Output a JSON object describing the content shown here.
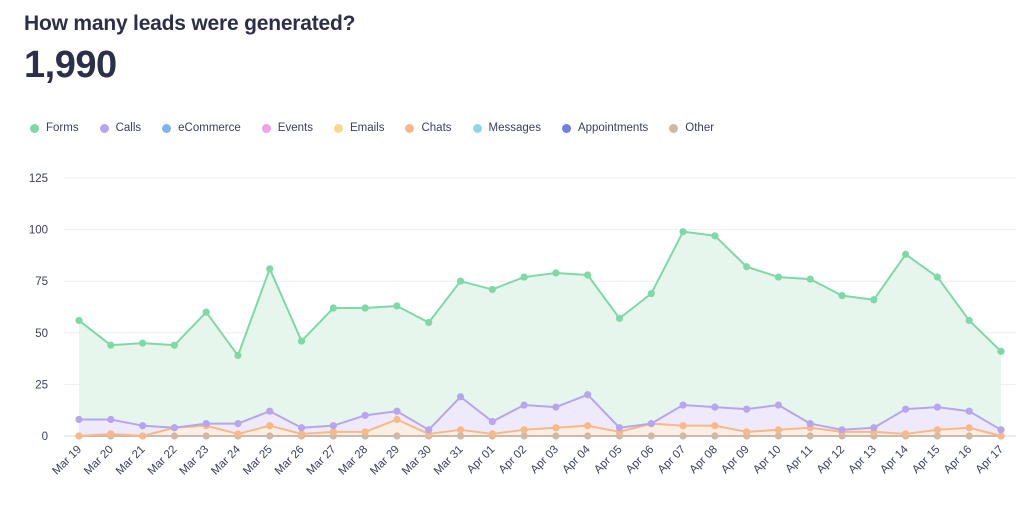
{
  "header": {
    "title": "How many leads were generated?",
    "total": "1,990"
  },
  "legend": [
    {
      "label": "Forms",
      "color": "#7fd8a8"
    },
    {
      "label": "Calls",
      "color": "#b7a6ec"
    },
    {
      "label": "eCommerce",
      "color": "#7fb3ee"
    },
    {
      "label": "Events",
      "color": "#f0a2e6"
    },
    {
      "label": "Emails",
      "color": "#f8d98c"
    },
    {
      "label": "Chats",
      "color": "#f7b88a"
    },
    {
      "label": "Messages",
      "color": "#92d6e6"
    },
    {
      "label": "Appointments",
      "color": "#6f7ee8"
    },
    {
      "label": "Other",
      "color": "#cdb9a6"
    }
  ],
  "chart_data": {
    "type": "area",
    "title": "How many leads were generated?",
    "xlabel": "",
    "ylabel": "",
    "ylim": [
      0,
      125
    ],
    "yticks": [
      0,
      25,
      50,
      75,
      100,
      125
    ],
    "categories": [
      "Mar 19",
      "Mar 20",
      "Mar 21",
      "Mar 22",
      "Mar 23",
      "Mar 24",
      "Mar 25",
      "Mar 26",
      "Mar 27",
      "Mar 28",
      "Mar 29",
      "Mar 30",
      "Mar 31",
      "Apr 01",
      "Apr 02",
      "Apr 03",
      "Apr 04",
      "Apr 05",
      "Apr 06",
      "Apr 07",
      "Apr 08",
      "Apr 09",
      "Apr 10",
      "Apr 11",
      "Apr 12",
      "Apr 13",
      "Apr 14",
      "Apr 15",
      "Apr 16",
      "Apr 17"
    ],
    "series": [
      {
        "name": "Forms",
        "color": "#7fd8a8",
        "fill": "#e6f6ec",
        "values": [
          56,
          44,
          45,
          44,
          60,
          39,
          81,
          46,
          62,
          62,
          63,
          55,
          75,
          71,
          77,
          79,
          78,
          57,
          69,
          99,
          97,
          82,
          77,
          76,
          68,
          66,
          88,
          77,
          56,
          41
        ]
      },
      {
        "name": "Calls",
        "color": "#b7a6ec",
        "fill": "#eee9fb",
        "values": [
          8,
          8,
          5,
          4,
          6,
          6,
          12,
          4,
          5,
          10,
          12,
          3,
          19,
          7,
          15,
          14,
          20,
          4,
          6,
          15,
          14,
          13,
          15,
          6,
          3,
          4,
          13,
          14,
          12,
          3
        ]
      },
      {
        "name": "Chats",
        "color": "#f7b88a",
        "fill": "#fbeee4",
        "values": [
          0,
          1,
          0,
          4,
          5,
          1,
          5,
          1,
          2,
          2,
          8,
          1,
          3,
          1,
          3,
          4,
          5,
          2,
          6,
          5,
          5,
          2,
          3,
          4,
          2,
          2,
          1,
          3,
          4,
          0
        ]
      },
      {
        "name": "Other",
        "color": "#cdb9a6",
        "fill": "none",
        "values": [
          0,
          0,
          0,
          0,
          0,
          0,
          0,
          0,
          0,
          0,
          0,
          0,
          0,
          0,
          0,
          0,
          0,
          0,
          0,
          0,
          0,
          0,
          0,
          0,
          0,
          0,
          0,
          0,
          0,
          0
        ]
      }
    ]
  }
}
